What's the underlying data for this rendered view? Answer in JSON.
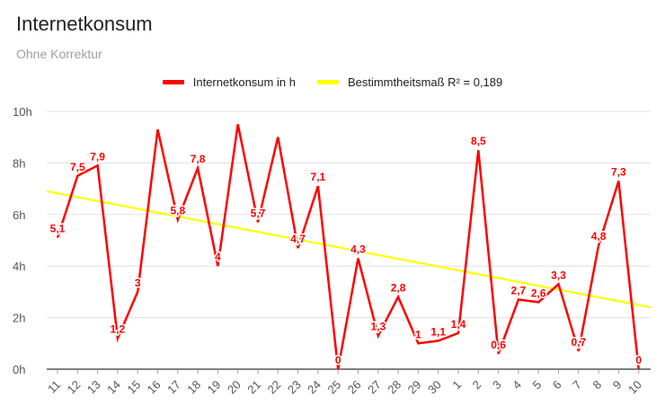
{
  "title": "Internetkonsum",
  "subtitle": "Ohne Korrektur",
  "legend": {
    "series_label": "Internetkonsum in h",
    "trend_label": "Bestimmtheitsmaß R² = 0,189"
  },
  "colors": {
    "series": "#ff0000",
    "trend": "#ffff00",
    "grid": "#e0e0e0",
    "axis": "#333333"
  },
  "chart_data": {
    "type": "line",
    "title": "Internetkonsum",
    "subtitle": "Ohne Korrektur",
    "categories": [
      "11",
      "12",
      "13",
      "14",
      "15",
      "16",
      "17",
      "18",
      "19",
      "20",
      "21",
      "22",
      "23",
      "24",
      "25",
      "26",
      "27",
      "28",
      "29",
      "30",
      "1",
      "2",
      "3",
      "4",
      "5",
      "6",
      "7",
      "8",
      "9",
      "10"
    ],
    "series": [
      {
        "name": "Internetkonsum in h",
        "values": [
          5.1,
          7.5,
          7.9,
          1.2,
          3,
          9.3,
          5.8,
          7.8,
          4,
          9.5,
          5.7,
          9,
          4.7,
          7.1,
          0,
          4.3,
          1.3,
          2.8,
          1,
          1.1,
          1.4,
          8.5,
          0.6,
          2.7,
          2.6,
          3.3,
          0.7,
          4.8,
          7.3,
          0
        ],
        "labels": [
          "5,1",
          "7,5",
          "7,9",
          "1,2",
          "3",
          "",
          "5,8",
          "7,8",
          "4",
          "",
          "5,7",
          "",
          "4,7",
          "7,1",
          "0",
          "4,3",
          "1,3",
          "2,8",
          "1",
          "1,1",
          "1,4",
          "8,5",
          "0,6",
          "2,7",
          "2,6",
          "3,3",
          "0,7",
          "4,8",
          "7,3",
          "0"
        ]
      },
      {
        "name": "Bestimmtheitsmaß R² = 0,189",
        "trendline": {
          "start": 6.9,
          "end": 2.4
        }
      }
    ],
    "yticks": [
      "0h",
      "2h",
      "4h",
      "6h",
      "8h",
      "10h"
    ],
    "ylim": [
      0,
      10
    ],
    "grid": true,
    "legend_position": "top"
  }
}
